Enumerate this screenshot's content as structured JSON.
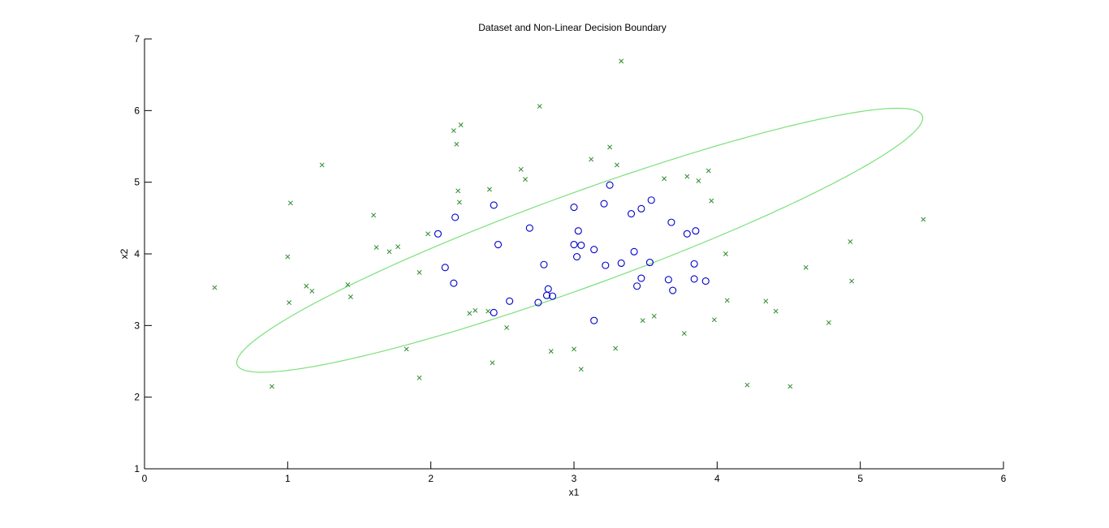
{
  "chart_data": {
    "type": "scatter",
    "title": "Dataset and Non-Linear Decision Boundary",
    "xlabel": "x1",
    "ylabel": "x2",
    "xlim": [
      0,
      6
    ],
    "ylim": [
      1,
      7
    ],
    "xticks": [
      "0",
      "1",
      "2",
      "3",
      "4",
      "5",
      "6"
    ],
    "yticks": [
      "1",
      "2",
      "3",
      "4",
      "5",
      "6",
      "7"
    ],
    "grid": false,
    "colors": {
      "positive": "#0000cc",
      "negative": "#2e8b2e",
      "boundary": "#7be07b"
    },
    "series": [
      {
        "marker": "circle",
        "points": [
          [
            2.05,
            4.28
          ],
          [
            2.1,
            3.81
          ],
          [
            2.16,
            3.59
          ],
          [
            2.17,
            4.51
          ],
          [
            2.44,
            4.68
          ],
          [
            2.47,
            4.13
          ],
          [
            2.44,
            3.18
          ],
          [
            2.55,
            3.34
          ],
          [
            2.69,
            4.36
          ],
          [
            2.75,
            3.32
          ],
          [
            2.79,
            3.85
          ],
          [
            2.81,
            3.42
          ],
          [
            2.82,
            3.51
          ],
          [
            2.85,
            3.41
          ],
          [
            3.0,
            4.65
          ],
          [
            3.0,
            4.13
          ],
          [
            3.02,
            3.96
          ],
          [
            3.03,
            4.32
          ],
          [
            3.05,
            4.12
          ],
          [
            3.14,
            3.07
          ],
          [
            3.14,
            4.06
          ],
          [
            3.21,
            4.7
          ],
          [
            3.22,
            3.84
          ],
          [
            3.25,
            4.96
          ],
          [
            3.33,
            3.87
          ],
          [
            3.4,
            4.56
          ],
          [
            3.42,
            4.03
          ],
          [
            3.44,
            3.55
          ],
          [
            3.47,
            4.63
          ],
          [
            3.47,
            3.66
          ],
          [
            3.53,
            3.88
          ],
          [
            3.54,
            4.75
          ],
          [
            3.66,
            3.64
          ],
          [
            3.68,
            4.44
          ],
          [
            3.69,
            3.49
          ],
          [
            3.79,
            4.28
          ],
          [
            3.84,
            3.86
          ],
          [
            3.85,
            4.32
          ],
          [
            3.84,
            3.65
          ],
          [
            3.92,
            3.62
          ]
        ]
      },
      {
        "marker": "x",
        "points": [
          [
            0.49,
            3.53
          ],
          [
            0.89,
            2.15
          ],
          [
            1.0,
            3.96
          ],
          [
            1.01,
            3.32
          ],
          [
            1.02,
            4.71
          ],
          [
            1.13,
            3.55
          ],
          [
            1.17,
            3.48
          ],
          [
            1.24,
            5.24
          ],
          [
            1.42,
            3.57
          ],
          [
            1.44,
            3.4
          ],
          [
            1.6,
            4.54
          ],
          [
            1.62,
            4.09
          ],
          [
            1.71,
            4.03
          ],
          [
            1.77,
            4.1
          ],
          [
            1.83,
            2.67
          ],
          [
            1.92,
            3.74
          ],
          [
            1.92,
            2.27
          ],
          [
            1.98,
            4.28
          ],
          [
            2.16,
            5.72
          ],
          [
            2.18,
            5.53
          ],
          [
            2.19,
            4.88
          ],
          [
            2.2,
            4.72
          ],
          [
            2.21,
            5.8
          ],
          [
            2.27,
            3.17
          ],
          [
            2.31,
            3.21
          ],
          [
            2.4,
            3.2
          ],
          [
            2.41,
            4.9
          ],
          [
            2.43,
            2.48
          ],
          [
            2.53,
            2.97
          ],
          [
            2.63,
            5.18
          ],
          [
            2.66,
            5.04
          ],
          [
            2.76,
            6.06
          ],
          [
            2.84,
            2.64
          ],
          [
            3.0,
            2.67
          ],
          [
            3.05,
            2.39
          ],
          [
            3.12,
            5.32
          ],
          [
            3.25,
            5.49
          ],
          [
            3.29,
            2.68
          ],
          [
            3.3,
            5.24
          ],
          [
            3.33,
            6.69
          ],
          [
            3.48,
            3.07
          ],
          [
            3.56,
            3.13
          ],
          [
            3.63,
            5.05
          ],
          [
            3.77,
            2.89
          ],
          [
            3.79,
            5.08
          ],
          [
            3.87,
            5.02
          ],
          [
            3.94,
            5.16
          ],
          [
            3.96,
            4.74
          ],
          [
            3.98,
            3.08
          ],
          [
            4.06,
            4.0
          ],
          [
            4.07,
            3.35
          ],
          [
            4.21,
            2.17
          ],
          [
            4.34,
            3.34
          ],
          [
            4.41,
            3.2
          ],
          [
            4.51,
            2.15
          ],
          [
            4.62,
            3.81
          ],
          [
            4.78,
            3.04
          ],
          [
            4.93,
            4.17
          ],
          [
            4.94,
            3.62
          ],
          [
            5.44,
            4.48
          ]
        ]
      }
    ],
    "boundary": {
      "shape": "ellipse",
      "center": [
        3.04,
        4.19
      ],
      "semi_major": 2.97,
      "semi_minor": 0.56,
      "angle_deg": 37
    }
  }
}
